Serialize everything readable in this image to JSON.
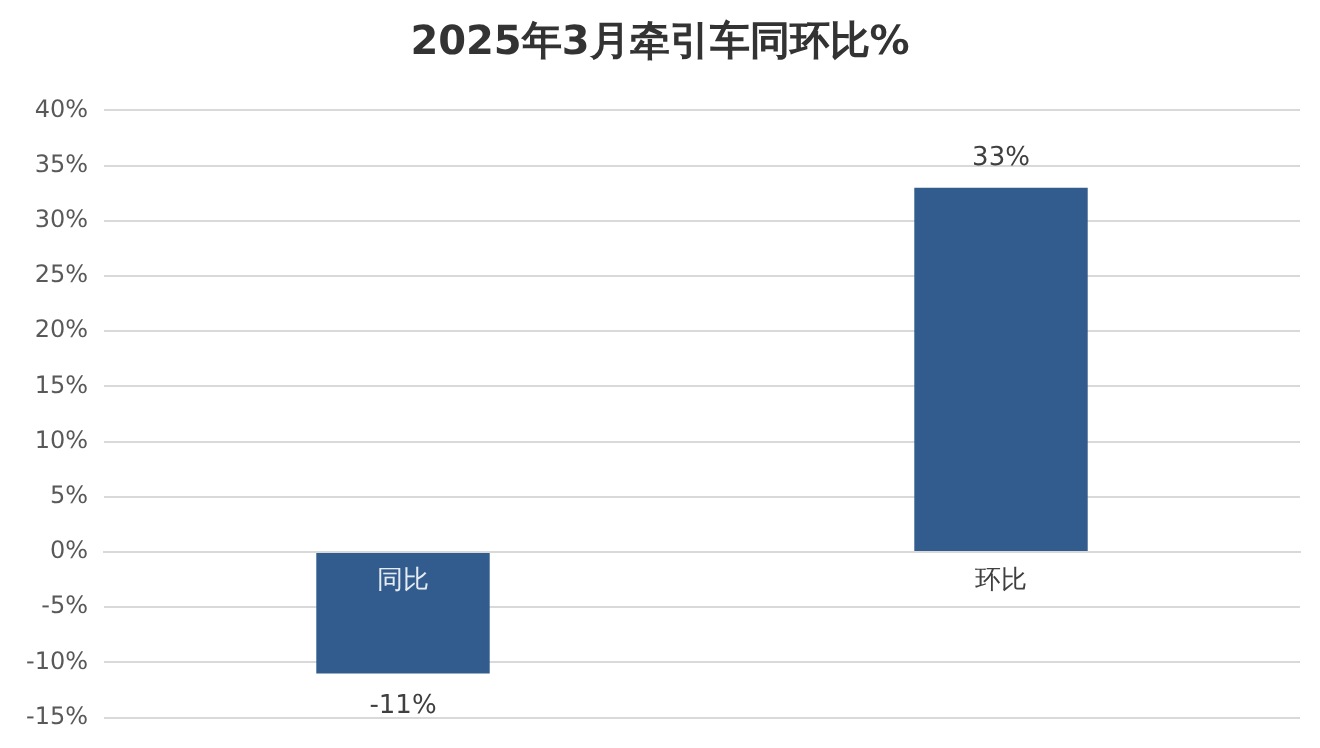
{
  "chart_data": {
    "type": "bar",
    "title": "2025年3月牵引车同环比%",
    "categories": [
      "同比",
      "环比"
    ],
    "values": [
      -11,
      33
    ],
    "color": "#335c8e",
    "value_labels": [
      "-11%",
      "33%"
    ],
    "ylim": [
      -15,
      40
    ],
    "yticks": [
      {
        "value": -15,
        "label": "-15%"
      },
      {
        "value": -10,
        "label": "-10%"
      },
      {
        "value": -5,
        "label": "-5%"
      },
      {
        "value": 0,
        "label": "0%"
      },
      {
        "value": 5,
        "label": "5%"
      },
      {
        "value": 10,
        "label": "10%"
      },
      {
        "value": 15,
        "label": "15%"
      },
      {
        "value": 20,
        "label": "20%"
      },
      {
        "value": 25,
        "label": "25%"
      },
      {
        "value": 30,
        "label": "30%"
      },
      {
        "value": 35,
        "label": "35%"
      },
      {
        "value": 40,
        "label": "40%"
      }
    ],
    "grid": "y"
  }
}
